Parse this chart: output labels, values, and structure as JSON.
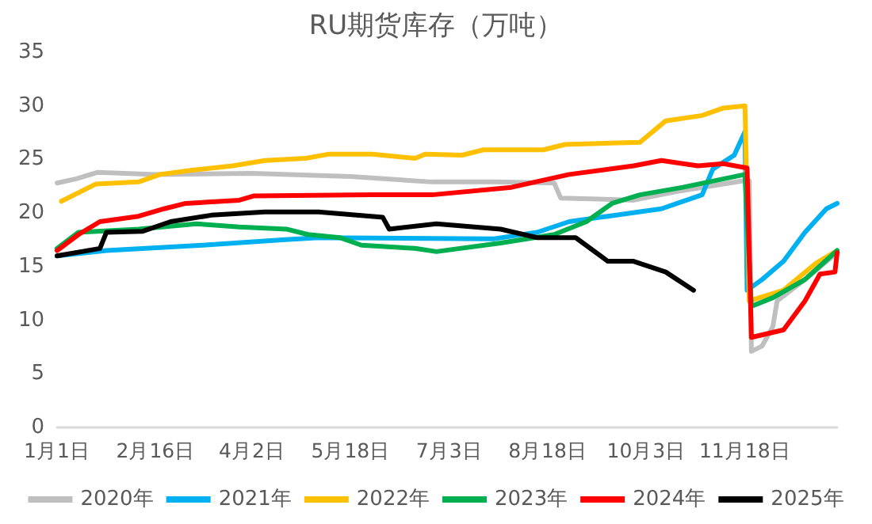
{
  "chart_data": {
    "type": "line",
    "title": "RU期货库存（万吨）",
    "xlim": [
      "--01-01",
      "--12-31"
    ],
    "xticks": [
      {
        "value": "--01-01",
        "label": "1月1日"
      },
      {
        "value": "--02-16",
        "label": "2月16日"
      },
      {
        "value": "--04-02",
        "label": "4月2日"
      },
      {
        "value": "--05-18",
        "label": "5月18日"
      },
      {
        "value": "--07-03",
        "label": "7月3日"
      },
      {
        "value": "--08-18",
        "label": "8月18日"
      },
      {
        "value": "--10-03",
        "label": "10月3日"
      },
      {
        "value": "--11-18",
        "label": "11月18日"
      }
    ],
    "ylim": [
      0,
      35
    ],
    "yticks": [
      0,
      5,
      10,
      15,
      20,
      25,
      30,
      35
    ],
    "grid": false,
    "legend": "bottom",
    "marker": "none",
    "line_style": "solid",
    "series": [
      {
        "name": "2020年",
        "color": "#bfbfbf",
        "x": [
          "--01-01",
          "--01-10",
          "--01-20",
          "--02-16",
          "--04-02",
          "--05-18",
          "--06-25",
          "--07-24",
          "--08-21",
          "--08-24",
          "--09-27",
          "--10-17",
          "--11-17",
          "--11-20",
          "--11-21",
          "--11-26",
          "--12-01",
          "--12-03",
          "--12-16",
          "--12-31"
        ],
        "values": [
          22.8,
          23.2,
          23.8,
          23.6,
          23.7,
          23.4,
          22.9,
          22.9,
          22.8,
          21.4,
          21.2,
          22.0,
          23.0,
          23.0,
          7.1,
          7.6,
          9.4,
          11.8,
          13.8,
          16.3
        ]
      },
      {
        "name": "2021年",
        "color": "#00b0f0",
        "x": [
          "--01-01",
          "--01-24",
          "--03-10",
          "--04-16",
          "--05-03",
          "--07-24",
          "--08-13",
          "--08-28",
          "--09-15",
          "--10-10",
          "--10-29",
          "--11-03",
          "--11-13",
          "--11-18",
          "--11-19",
          "--11-26",
          "--12-06",
          "--12-16",
          "--12-26",
          "--12-31"
        ],
        "values": [
          16.0,
          16.5,
          17.0,
          17.5,
          17.7,
          17.6,
          18.2,
          19.2,
          19.7,
          20.4,
          21.7,
          24.1,
          25.4,
          27.6,
          12.8,
          13.8,
          15.5,
          18.2,
          20.4,
          20.9
        ]
      },
      {
        "name": "2022年",
        "color": "#ffc000",
        "x": [
          "--01-03",
          "--01-19",
          "--02-08",
          "--02-18",
          "--03-05",
          "--03-24",
          "--04-08",
          "--04-27",
          "--05-08",
          "--05-28",
          "--06-17",
          "--06-22",
          "--07-09",
          "--07-19",
          "--08-16",
          "--08-26",
          "--09-30",
          "--10-12",
          "--10-29",
          "--11-08",
          "--11-18",
          "--11-20",
          "--12-06",
          "--12-21",
          "--12-31"
        ],
        "values": [
          21.1,
          22.7,
          22.9,
          23.6,
          24.0,
          24.4,
          24.9,
          25.1,
          25.5,
          25.5,
          25.1,
          25.5,
          25.4,
          25.9,
          25.9,
          26.4,
          26.6,
          28.6,
          29.1,
          29.8,
          30.0,
          11.8,
          12.8,
          15.3,
          16.5
        ]
      },
      {
        "name": "2023年",
        "color": "#00b050",
        "x": [
          "--01-01",
          "--01-11",
          "--02-08",
          "--03-07",
          "--03-27",
          "--04-18",
          "--04-28",
          "--05-13",
          "--05-23",
          "--06-17",
          "--06-27",
          "--07-27",
          "--08-21",
          "--09-05",
          "--09-17",
          "--09-30",
          "--10-20",
          "--11-18",
          "--11-21",
          "--12-01",
          "--12-16",
          "--12-31"
        ],
        "values": [
          16.7,
          18.2,
          18.5,
          19.0,
          18.7,
          18.5,
          18.0,
          17.7,
          17.0,
          16.7,
          16.4,
          17.2,
          18.0,
          19.2,
          20.9,
          21.7,
          22.4,
          23.6,
          11.3,
          12.1,
          13.8,
          16.5
        ]
      },
      {
        "name": "2024年",
        "color": "#ff0000",
        "x": [
          "--01-01",
          "--01-11",
          "--01-21",
          "--02-08",
          "--02-20",
          "--03-02",
          "--03-27",
          "--04-03",
          "--05-28",
          "--06-25",
          "--08-01",
          "--08-28",
          "--09-27",
          "--10-10",
          "--10-27",
          "--11-08",
          "--11-19",
          "--11-21",
          "--12-06",
          "--12-16",
          "--12-23",
          "--12-30",
          "--12-31"
        ],
        "values": [
          16.5,
          18.0,
          19.2,
          19.7,
          20.4,
          20.9,
          21.2,
          21.6,
          21.7,
          21.7,
          22.4,
          23.6,
          24.4,
          24.9,
          24.4,
          24.6,
          24.2,
          8.4,
          9.1,
          11.8,
          14.3,
          14.5,
          16.3
        ]
      },
      {
        "name": "2025年",
        "color": "#000000",
        "x": [
          "--01-01",
          "--01-21",
          "--01-24",
          "--02-10",
          "--02-23",
          "--03-14",
          "--04-08",
          "--05-03",
          "--06-02",
          "--06-05",
          "--06-27",
          "--07-27",
          "--08-13",
          "--08-31",
          "--09-15",
          "--09-27",
          "--10-12",
          "--10-25"
        ],
        "values": [
          16.0,
          16.7,
          18.2,
          18.3,
          19.2,
          19.8,
          20.1,
          20.1,
          19.6,
          18.5,
          19.0,
          18.5,
          17.7,
          17.7,
          15.5,
          15.5,
          14.5,
          12.8
        ]
      }
    ]
  }
}
